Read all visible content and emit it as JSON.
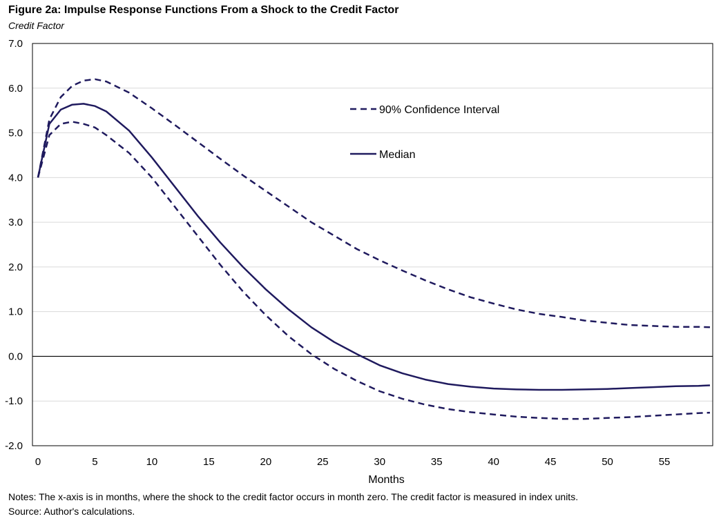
{
  "chart_data": {
    "type": "line",
    "title": "Figure 2a: Impulse Response Functions From a Shock to the Credit Factor",
    "subtitle": "Credit Factor",
    "xlabel": "Months",
    "ylabel": "",
    "xlim": [
      0,
      59
    ],
    "ylim": [
      -2.0,
      7.0
    ],
    "x_ticks": [
      0,
      5,
      10,
      15,
      20,
      25,
      30,
      35,
      40,
      45,
      50,
      55
    ],
    "y_ticks": [
      -2.0,
      -1.0,
      0.0,
      1.0,
      2.0,
      3.0,
      4.0,
      5.0,
      6.0,
      7.0
    ],
    "y_tick_labels": [
      "-2.0",
      "-1.0",
      "0.0",
      "1.0",
      "2.0",
      "3.0",
      "4.0",
      "5.0",
      "6.0",
      "7.0"
    ],
    "grid": true,
    "zero_line": true,
    "legend_position": "top-right",
    "series": [
      {
        "name": "90% Confidence Interval",
        "style": "dashed",
        "x": [
          0,
          1,
          2,
          3,
          4,
          5,
          6,
          8,
          10,
          12,
          14,
          16,
          18,
          20,
          22,
          24,
          26,
          28,
          30,
          32,
          34,
          36,
          38,
          40,
          42,
          44,
          46,
          48,
          50,
          52,
          54,
          56,
          58,
          59
        ],
        "values": [
          4.0,
          5.3,
          5.8,
          6.05,
          6.17,
          6.2,
          6.15,
          5.9,
          5.55,
          5.18,
          4.8,
          4.42,
          4.05,
          3.7,
          3.35,
          3.0,
          2.7,
          2.4,
          2.15,
          1.92,
          1.7,
          1.5,
          1.32,
          1.18,
          1.05,
          0.95,
          0.88,
          0.8,
          0.75,
          0.7,
          0.68,
          0.66,
          0.66,
          0.65
        ]
      },
      {
        "name": "90% Confidence Interval",
        "style": "dashed",
        "x": [
          0,
          1,
          2,
          3,
          4,
          5,
          6,
          8,
          10,
          12,
          14,
          16,
          18,
          20,
          22,
          24,
          26,
          28,
          30,
          32,
          34,
          36,
          38,
          40,
          42,
          44,
          46,
          48,
          50,
          52,
          54,
          56,
          58,
          59
        ],
        "values": [
          4.0,
          4.95,
          5.2,
          5.25,
          5.2,
          5.12,
          4.95,
          4.55,
          4.0,
          3.35,
          2.7,
          2.05,
          1.45,
          0.92,
          0.45,
          0.05,
          -0.28,
          -0.55,
          -0.78,
          -0.95,
          -1.08,
          -1.18,
          -1.25,
          -1.3,
          -1.35,
          -1.38,
          -1.4,
          -1.4,
          -1.38,
          -1.36,
          -1.33,
          -1.3,
          -1.27,
          -1.26
        ]
      },
      {
        "name": "Median",
        "style": "solid",
        "x": [
          0,
          1,
          2,
          3,
          4,
          5,
          6,
          8,
          10,
          12,
          14,
          16,
          18,
          20,
          22,
          24,
          26,
          28,
          30,
          32,
          34,
          36,
          38,
          40,
          42,
          44,
          46,
          48,
          50,
          52,
          54,
          56,
          58,
          59
        ],
        "values": [
          4.0,
          5.2,
          5.52,
          5.63,
          5.65,
          5.6,
          5.48,
          5.05,
          4.45,
          3.8,
          3.15,
          2.55,
          2.0,
          1.5,
          1.05,
          0.65,
          0.32,
          0.05,
          -0.2,
          -0.38,
          -0.52,
          -0.62,
          -0.68,
          -0.72,
          -0.74,
          -0.75,
          -0.75,
          -0.74,
          -0.73,
          -0.71,
          -0.69,
          -0.67,
          -0.66,
          -0.65
        ]
      }
    ],
    "legend": [
      {
        "label": "90% Confidence Interval",
        "style": "dashed"
      },
      {
        "label": "Median",
        "style": "solid"
      }
    ],
    "line_color": "#1f1a5e"
  },
  "notes": {
    "line1": "Notes: The x-axis is in months, where the shock to the credit factor occurs in month zero. The credit factor is measured in index units.",
    "line2": "Source: Author's calculations."
  },
  "colors": {
    "series": "#1f1a5e",
    "grid": "#d9d9d9",
    "axis": "#000000"
  }
}
